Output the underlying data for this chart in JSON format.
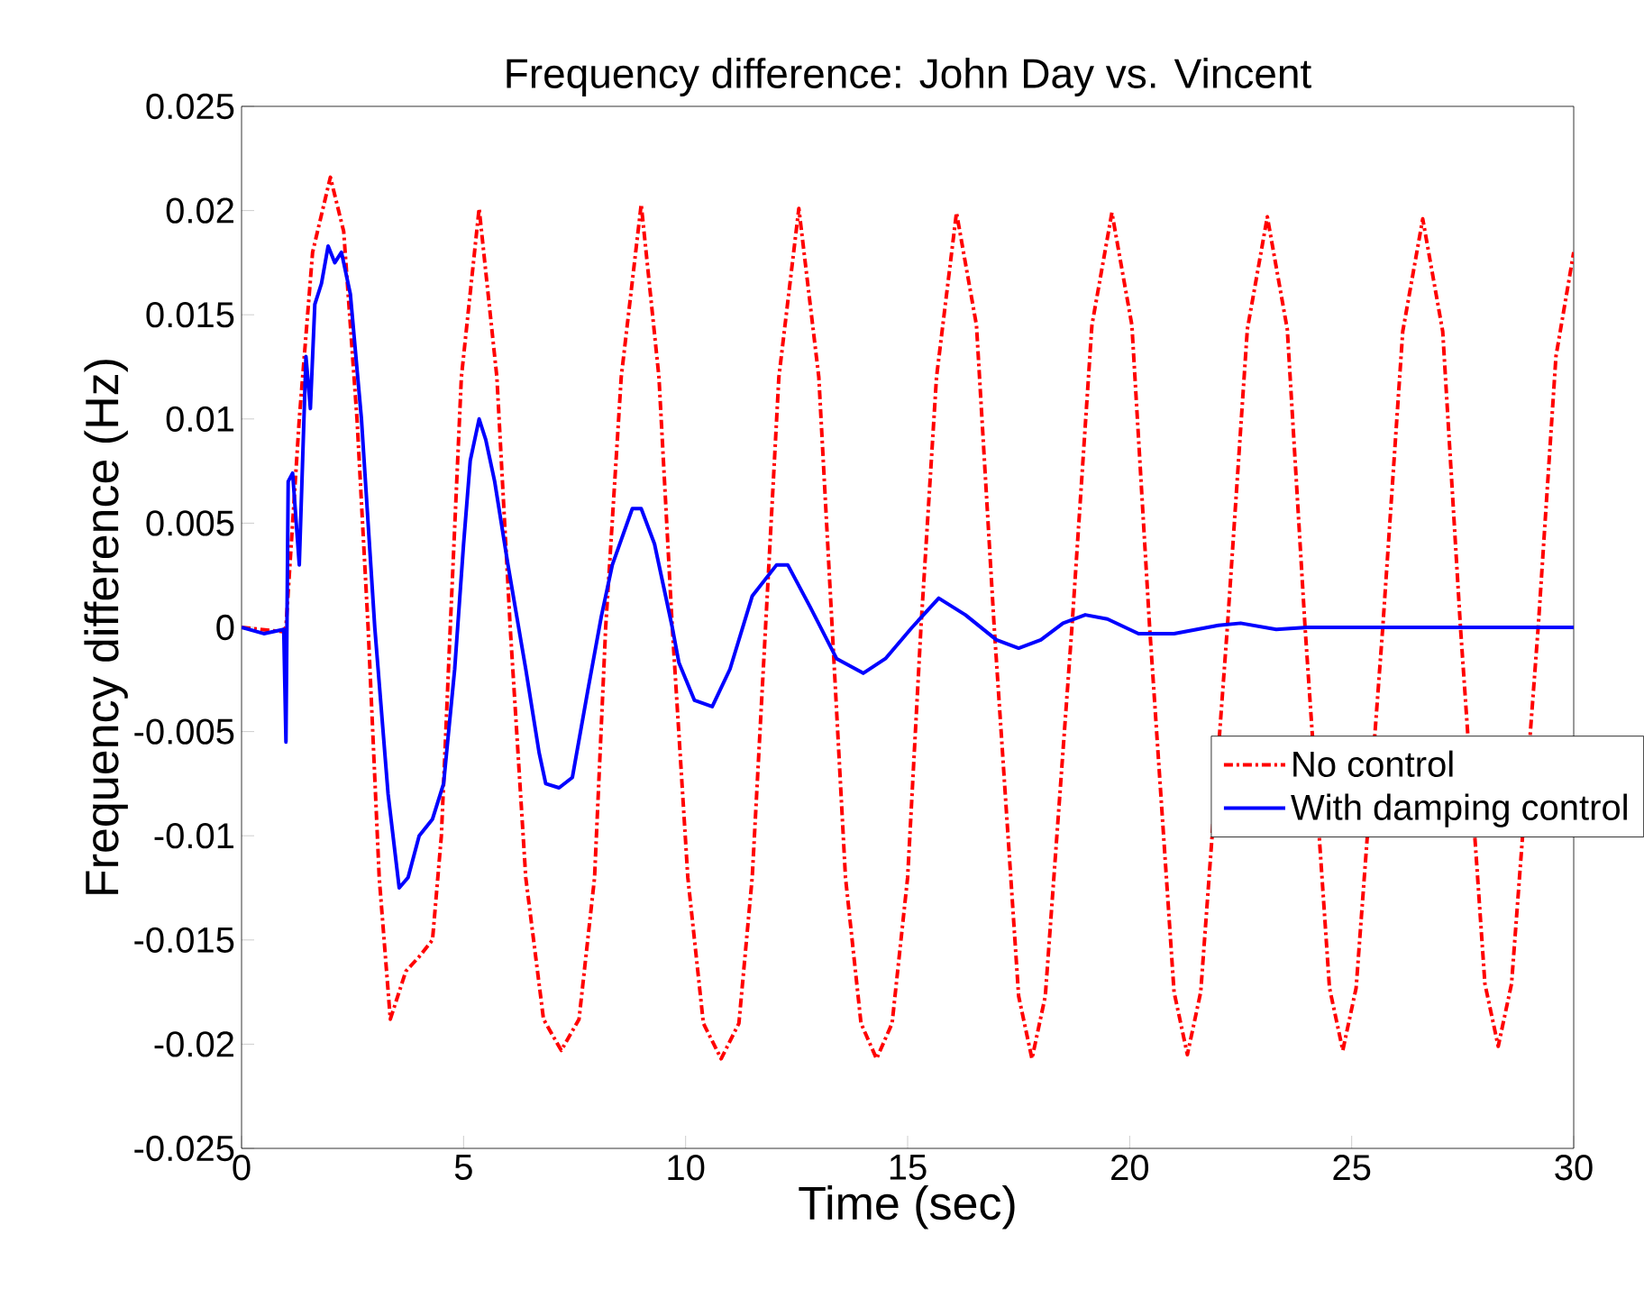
{
  "chart_data": {
    "type": "line",
    "title": "Frequency difference: John Day vs. Vincent",
    "xlabel": "Time (sec)",
    "ylabel": "Frequency difference (Hz)",
    "xlim": [
      0,
      30
    ],
    "xticks": [
      0,
      5,
      10,
      15,
      20,
      25,
      30
    ],
    "ylim": [
      -0.025,
      0.025
    ],
    "yticks": [
      -0.025,
      -0.02,
      -0.015,
      -0.01,
      -0.005,
      0,
      0.005,
      0.01,
      0.015,
      0.02,
      0.025
    ],
    "grid": false,
    "legend": "bottom right",
    "series": [
      {
        "name": "No control",
        "color": "#ff0000",
        "line_style": "dashed",
        "x": [
          0,
          0.9,
          1.0,
          1.3,
          1.6,
          2.0,
          2.3,
          2.6,
          2.85,
          3.1,
          3.35,
          3.7,
          4.0,
          4.3,
          4.5,
          4.7,
          4.95,
          5.35,
          5.75,
          6.05,
          6.4,
          6.8,
          7.2,
          7.6,
          7.95,
          8.2,
          8.55,
          9.0,
          9.4,
          9.7,
          10.05,
          10.4,
          10.8,
          11.2,
          11.5,
          11.8,
          12.1,
          12.55,
          13.0,
          13.3,
          13.6,
          13.95,
          14.3,
          14.65,
          15.0,
          15.3,
          15.65,
          16.1,
          16.55,
          16.95,
          17.5,
          17.8,
          18.1,
          18.7,
          19.15,
          19.6,
          20.05,
          20.45,
          21.0,
          21.3,
          21.6,
          22.2,
          22.65,
          23.1,
          23.55,
          23.95,
          24.5,
          24.8,
          25.1,
          25.7,
          26.15,
          26.6,
          27.05,
          27.45,
          28.0,
          28.3,
          28.6,
          29.2,
          29.6,
          30
        ],
        "values": [
          0,
          -0.0002,
          0,
          0.01,
          0.018,
          0.0216,
          0.019,
          0.01,
          0,
          -0.012,
          -0.0188,
          -0.0165,
          -0.0158,
          -0.015,
          -0.01,
          0,
          0.012,
          0.0201,
          0.012,
          0,
          -0.012,
          -0.0188,
          -0.0203,
          -0.0188,
          -0.012,
          0,
          0.012,
          0.0203,
          0.012,
          0,
          -0.012,
          -0.019,
          -0.0207,
          -0.019,
          -0.012,
          0,
          0.012,
          0.0201,
          0.012,
          0,
          -0.012,
          -0.019,
          -0.0207,
          -0.019,
          -0.012,
          0,
          0.012,
          0.0199,
          0.0145,
          0,
          -0.0177,
          -0.0207,
          -0.0177,
          0,
          0.0145,
          0.0199,
          0.0145,
          0,
          -0.0175,
          -0.0205,
          -0.0175,
          0,
          0.0143,
          0.0197,
          0.0143,
          0,
          -0.0173,
          -0.0203,
          -0.0173,
          0,
          0.0142,
          0.0196,
          0.0142,
          0,
          -0.0171,
          -0.0201,
          -0.0171,
          0,
          0.013,
          0.018
        ]
      },
      {
        "name": "With damping control",
        "color": "#0000ff",
        "line_style": "solid",
        "x": [
          0,
          0.5,
          0.95,
          1.0,
          1.05,
          1.15,
          1.3,
          1.45,
          1.55,
          1.65,
          1.8,
          1.95,
          2.1,
          2.25,
          2.45,
          2.7,
          3.0,
          3.3,
          3.55,
          3.75,
          4.0,
          4.3,
          4.55,
          4.8,
          5.0,
          5.15,
          5.35,
          5.5,
          5.7,
          6.0,
          6.4,
          6.7,
          6.85,
          7.15,
          7.45,
          7.8,
          8.1,
          8.35,
          8.8,
          9.0,
          9.3,
          9.7,
          9.85,
          10.2,
          10.6,
          11.0,
          11.5,
          12.05,
          12.3,
          12.8,
          13.4,
          14.0,
          14.5,
          15.1,
          15.7,
          16.3,
          17.0,
          17.5,
          18.0,
          18.5,
          19.0,
          19.5,
          20.2,
          21.0,
          22.0,
          22.5,
          23.3,
          24,
          26,
          28,
          30
        ],
        "values": [
          0,
          -0.0003,
          -0.0001,
          -0.0055,
          0.007,
          0.0074,
          0.003,
          0.013,
          0.0105,
          0.0155,
          0.0165,
          0.0183,
          0.0175,
          0.018,
          0.016,
          0.01,
          0,
          -0.008,
          -0.0125,
          -0.012,
          -0.01,
          -0.0092,
          -0.0075,
          -0.002,
          0.004,
          0.008,
          0.01,
          0.009,
          0.007,
          0.003,
          -0.002,
          -0.006,
          -0.0075,
          -0.0077,
          -0.0072,
          -0.003,
          0.0005,
          0.003,
          0.0057,
          0.0057,
          0.004,
          0,
          -0.0017,
          -0.0035,
          -0.0038,
          -0.002,
          0.0015,
          0.003,
          0.003,
          0.001,
          -0.0015,
          -0.0022,
          -0.0015,
          0,
          0.0014,
          0.0006,
          -0.0006,
          -0.001,
          -0.0006,
          0.0002,
          0.0006,
          0.0004,
          -0.0003,
          -0.0003,
          0.0001,
          0.0002,
          -0.0001,
          0,
          0,
          0,
          0
        ]
      }
    ]
  }
}
